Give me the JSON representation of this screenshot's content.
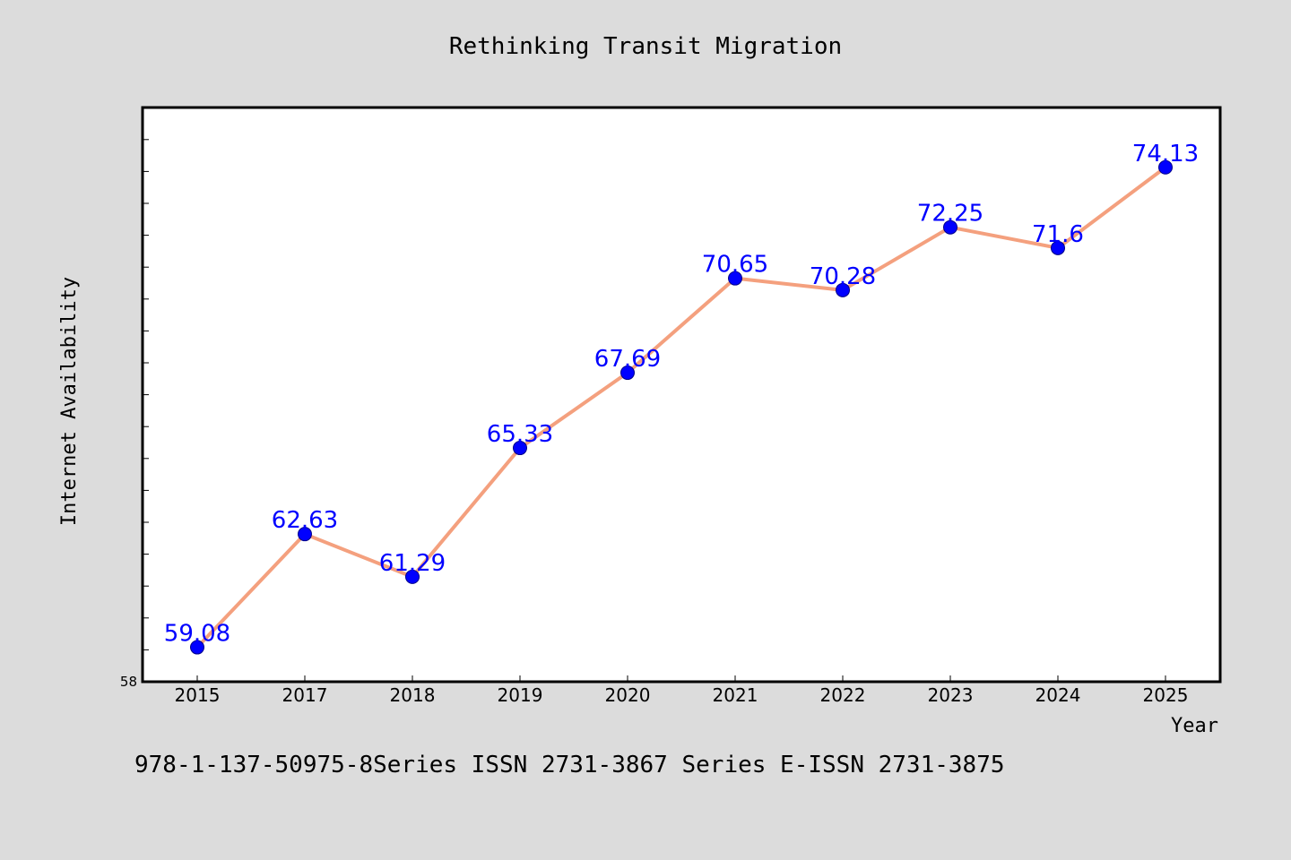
{
  "chart_data": {
    "type": "line",
    "title": "Rethinking Transit Migration",
    "xlabel": "Year",
    "ylabel": "Internet Availability",
    "categories": [
      "2015",
      "2017",
      "2018",
      "2019",
      "2020",
      "2021",
      "2022",
      "2023",
      "2024",
      "2025"
    ],
    "values": [
      59.08,
      62.63,
      61.29,
      65.33,
      67.69,
      70.65,
      70.28,
      72.25,
      71.6,
      74.13
    ],
    "data_labels": [
      "59.08",
      "62.63",
      "61.29",
      "65.33",
      "67.69",
      "70.65",
      "70.28",
      "72.25",
      "71.6",
      "74.13"
    ],
    "ylim": [
      58,
      76
    ],
    "y_tick_labels": [
      "58"
    ],
    "y_minor_ticks": [
      59,
      60,
      61,
      62,
      63,
      64,
      65,
      66,
      67,
      68,
      69,
      70,
      71,
      72,
      73,
      74,
      75
    ],
    "grid": false,
    "legend": "none",
    "line_color": "#f4a07e",
    "marker_color": "#0000ff",
    "label_color": "#0000ff"
  },
  "footer": {
    "text": "978-1-137-50975-8Series ISSN 2731-3867 Series E-ISSN 2731-3875"
  },
  "colors": {
    "background": "#dcdcdc",
    "plot_background": "#ffffff",
    "axis": "#000000"
  }
}
